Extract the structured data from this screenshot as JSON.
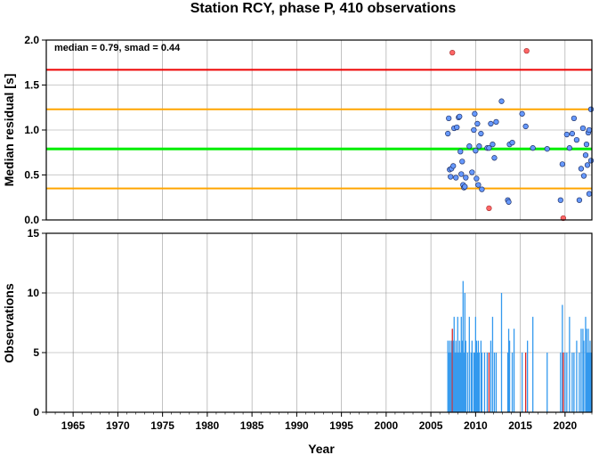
{
  "title": "Station RCY, phase P, 410 observations",
  "colors": {
    "median_line": "#00ee00",
    "smad_line": "#ffa500",
    "limit_line": "#ee0000",
    "normal_point": "#6699ff",
    "outlier_point": "#ff6666",
    "bar_normal": "#3399ee",
    "bar_outlier": "#dd2222",
    "grid": "#999999"
  },
  "chart_data": [
    {
      "type": "scatter",
      "name": "residuals",
      "annotation": "median = 0.79, smad = 0.44",
      "xlabel": "",
      "ylabel": "Median residual [s]",
      "xlim": [
        1962,
        2023
      ],
      "ylim": [
        0,
        2.0
      ],
      "yticks": [
        "0.0",
        "0.5",
        "1.0",
        "1.5",
        "2.0"
      ],
      "ytick_values": [
        0,
        0.5,
        1.0,
        1.5,
        2.0
      ],
      "xticks": [
        1965,
        1970,
        1975,
        1980,
        1985,
        1990,
        1995,
        2000,
        2005,
        2010,
        2015,
        2020
      ],
      "grid": true,
      "reference_lines": {
        "median": 0.79,
        "smad_low": 0.35,
        "smad_high": 1.23,
        "limit_high": 1.67
      },
      "points": [
        {
          "x": 2006.9,
          "y": 0.96
        },
        {
          "x": 2007.0,
          "y": 1.13
        },
        {
          "x": 2007.1,
          "y": 0.56
        },
        {
          "x": 2007.2,
          "y": 0.48
        },
        {
          "x": 2007.3,
          "y": 0.57
        },
        {
          "x": 2007.5,
          "y": 0.6
        },
        {
          "x": 2007.6,
          "y": 1.02
        },
        {
          "x": 2007.8,
          "y": 0.47
        },
        {
          "x": 2007.9,
          "y": 1.03
        },
        {
          "x": 2008.1,
          "y": 1.14
        },
        {
          "x": 2008.2,
          "y": 1.15
        },
        {
          "x": 2008.3,
          "y": 0.76
        },
        {
          "x": 2008.4,
          "y": 0.51
        },
        {
          "x": 2008.5,
          "y": 0.65
        },
        {
          "x": 2008.6,
          "y": 0.39
        },
        {
          "x": 2008.7,
          "y": 0.36
        },
        {
          "x": 2008.8,
          "y": 0.37
        },
        {
          "x": 2008.9,
          "y": 0.47
        },
        {
          "x": 2009.3,
          "y": 0.82
        },
        {
          "x": 2009.6,
          "y": 0.53
        },
        {
          "x": 2009.8,
          "y": 1.0
        },
        {
          "x": 2009.9,
          "y": 1.18
        },
        {
          "x": 2010.0,
          "y": 0.77
        },
        {
          "x": 2010.1,
          "y": 0.46
        },
        {
          "x": 2010.2,
          "y": 1.07
        },
        {
          "x": 2010.3,
          "y": 0.39
        },
        {
          "x": 2010.4,
          "y": 0.82
        },
        {
          "x": 2010.6,
          "y": 0.96
        },
        {
          "x": 2010.7,
          "y": 0.34
        },
        {
          "x": 2011.3,
          "y": 0.8
        },
        {
          "x": 2011.5,
          "y": 0.8
        },
        {
          "x": 2011.7,
          "y": 1.07
        },
        {
          "x": 2011.9,
          "y": 0.84
        },
        {
          "x": 2012.1,
          "y": 0.69
        },
        {
          "x": 2012.3,
          "y": 1.09
        },
        {
          "x": 2012.9,
          "y": 1.32
        },
        {
          "x": 2013.6,
          "y": 0.22
        },
        {
          "x": 2013.7,
          "y": 0.2
        },
        {
          "x": 2013.8,
          "y": 0.84
        },
        {
          "x": 2014.1,
          "y": 0.86
        },
        {
          "x": 2015.2,
          "y": 1.18
        },
        {
          "x": 2015.6,
          "y": 1.04
        },
        {
          "x": 2016.4,
          "y": 0.8
        },
        {
          "x": 2018.0,
          "y": 0.79
        },
        {
          "x": 2019.5,
          "y": 0.22
        },
        {
          "x": 2019.7,
          "y": 0.62
        },
        {
          "x": 2020.2,
          "y": 0.95
        },
        {
          "x": 2020.5,
          "y": 0.8
        },
        {
          "x": 2020.8,
          "y": 0.96
        },
        {
          "x": 2021.0,
          "y": 1.13
        },
        {
          "x": 2021.3,
          "y": 0.89
        },
        {
          "x": 2021.6,
          "y": 0.22
        },
        {
          "x": 2021.8,
          "y": 0.57
        },
        {
          "x": 2022.0,
          "y": 1.02
        },
        {
          "x": 2022.1,
          "y": 0.49
        },
        {
          "x": 2022.3,
          "y": 0.72
        },
        {
          "x": 2022.4,
          "y": 0.84
        },
        {
          "x": 2022.5,
          "y": 0.61
        },
        {
          "x": 2022.6,
          "y": 0.97
        },
        {
          "x": 2022.7,
          "y": 1.0
        },
        {
          "x": 2022.7,
          "y": 0.29
        },
        {
          "x": 2022.9,
          "y": 0.66
        },
        {
          "x": 2022.9,
          "y": 1.23
        }
      ],
      "outliers": [
        {
          "x": 2007.4,
          "y": 1.86
        },
        {
          "x": 2011.5,
          "y": 0.13
        },
        {
          "x": 2015.7,
          "y": 1.88
        },
        {
          "x": 2019.8,
          "y": 0.02
        }
      ]
    },
    {
      "type": "bar",
      "name": "observations",
      "xlabel": "Year",
      "ylabel": "Observations",
      "xlim": [
        1962,
        2023
      ],
      "ylim": [
        0,
        15
      ],
      "yticks": [
        "0",
        "5",
        "10",
        "15"
      ],
      "ytick_values": [
        0,
        5,
        10,
        15
      ],
      "xticks": [
        1965,
        1970,
        1975,
        1980,
        1985,
        1990,
        1995,
        2000,
        2005,
        2010,
        2015,
        2020
      ],
      "grid": true,
      "bars": [
        {
          "x": 2006.9,
          "y": 6
        },
        {
          "x": 2007.0,
          "y": 5
        },
        {
          "x": 2007.1,
          "y": 6
        },
        {
          "x": 2007.2,
          "y": 5
        },
        {
          "x": 2007.3,
          "y": 6
        },
        {
          "x": 2007.4,
          "y": 7,
          "outlier": true
        },
        {
          "x": 2007.5,
          "y": 6
        },
        {
          "x": 2007.6,
          "y": 8
        },
        {
          "x": 2007.7,
          "y": 5
        },
        {
          "x": 2007.8,
          "y": 6
        },
        {
          "x": 2007.9,
          "y": 5
        },
        {
          "x": 2008.0,
          "y": 8
        },
        {
          "x": 2008.1,
          "y": 5
        },
        {
          "x": 2008.2,
          "y": 6
        },
        {
          "x": 2008.3,
          "y": 5
        },
        {
          "x": 2008.4,
          "y": 8
        },
        {
          "x": 2008.5,
          "y": 6
        },
        {
          "x": 2008.6,
          "y": 11
        },
        {
          "x": 2008.7,
          "y": 5
        },
        {
          "x": 2008.8,
          "y": 10
        },
        {
          "x": 2008.9,
          "y": 6
        },
        {
          "x": 2009.1,
          "y": 5
        },
        {
          "x": 2009.3,
          "y": 8
        },
        {
          "x": 2009.5,
          "y": 5
        },
        {
          "x": 2009.6,
          "y": 6
        },
        {
          "x": 2009.8,
          "y": 5
        },
        {
          "x": 2009.9,
          "y": 5
        },
        {
          "x": 2010.0,
          "y": 8
        },
        {
          "x": 2010.1,
          "y": 6
        },
        {
          "x": 2010.2,
          "y": 5
        },
        {
          "x": 2010.3,
          "y": 6
        },
        {
          "x": 2010.4,
          "y": 5
        },
        {
          "x": 2010.6,
          "y": 6
        },
        {
          "x": 2010.7,
          "y": 5
        },
        {
          "x": 2011.0,
          "y": 5
        },
        {
          "x": 2011.3,
          "y": 5
        },
        {
          "x": 2011.5,
          "y": 5,
          "outlier": true
        },
        {
          "x": 2011.7,
          "y": 6
        },
        {
          "x": 2011.9,
          "y": 8
        },
        {
          "x": 2012.1,
          "y": 5
        },
        {
          "x": 2012.3,
          "y": 5
        },
        {
          "x": 2012.9,
          "y": 10
        },
        {
          "x": 2013.6,
          "y": 5
        },
        {
          "x": 2013.7,
          "y": 7
        },
        {
          "x": 2013.8,
          "y": 6
        },
        {
          "x": 2014.1,
          "y": 5
        },
        {
          "x": 2014.3,
          "y": 7
        },
        {
          "x": 2015.2,
          "y": 5
        },
        {
          "x": 2015.6,
          "y": 5,
          "outlier": true
        },
        {
          "x": 2015.8,
          "y": 6
        },
        {
          "x": 2016.4,
          "y": 8
        },
        {
          "x": 2018.0,
          "y": 5
        },
        {
          "x": 2019.5,
          "y": 5
        },
        {
          "x": 2019.7,
          "y": 9
        },
        {
          "x": 2019.8,
          "y": 5,
          "outlier": true
        },
        {
          "x": 2020.0,
          "y": 5
        },
        {
          "x": 2020.2,
          "y": 5
        },
        {
          "x": 2020.5,
          "y": 8
        },
        {
          "x": 2020.8,
          "y": 5
        },
        {
          "x": 2021.0,
          "y": 5
        },
        {
          "x": 2021.3,
          "y": 6
        },
        {
          "x": 2021.6,
          "y": 5
        },
        {
          "x": 2021.8,
          "y": 7
        },
        {
          "x": 2022.0,
          "y": 7
        },
        {
          "x": 2022.1,
          "y": 6
        },
        {
          "x": 2022.3,
          "y": 8
        },
        {
          "x": 2022.4,
          "y": 7
        },
        {
          "x": 2022.5,
          "y": 5
        },
        {
          "x": 2022.6,
          "y": 7
        },
        {
          "x": 2022.7,
          "y": 5
        },
        {
          "x": 2022.8,
          "y": 6
        },
        {
          "x": 2022.9,
          "y": 5
        }
      ]
    }
  ]
}
